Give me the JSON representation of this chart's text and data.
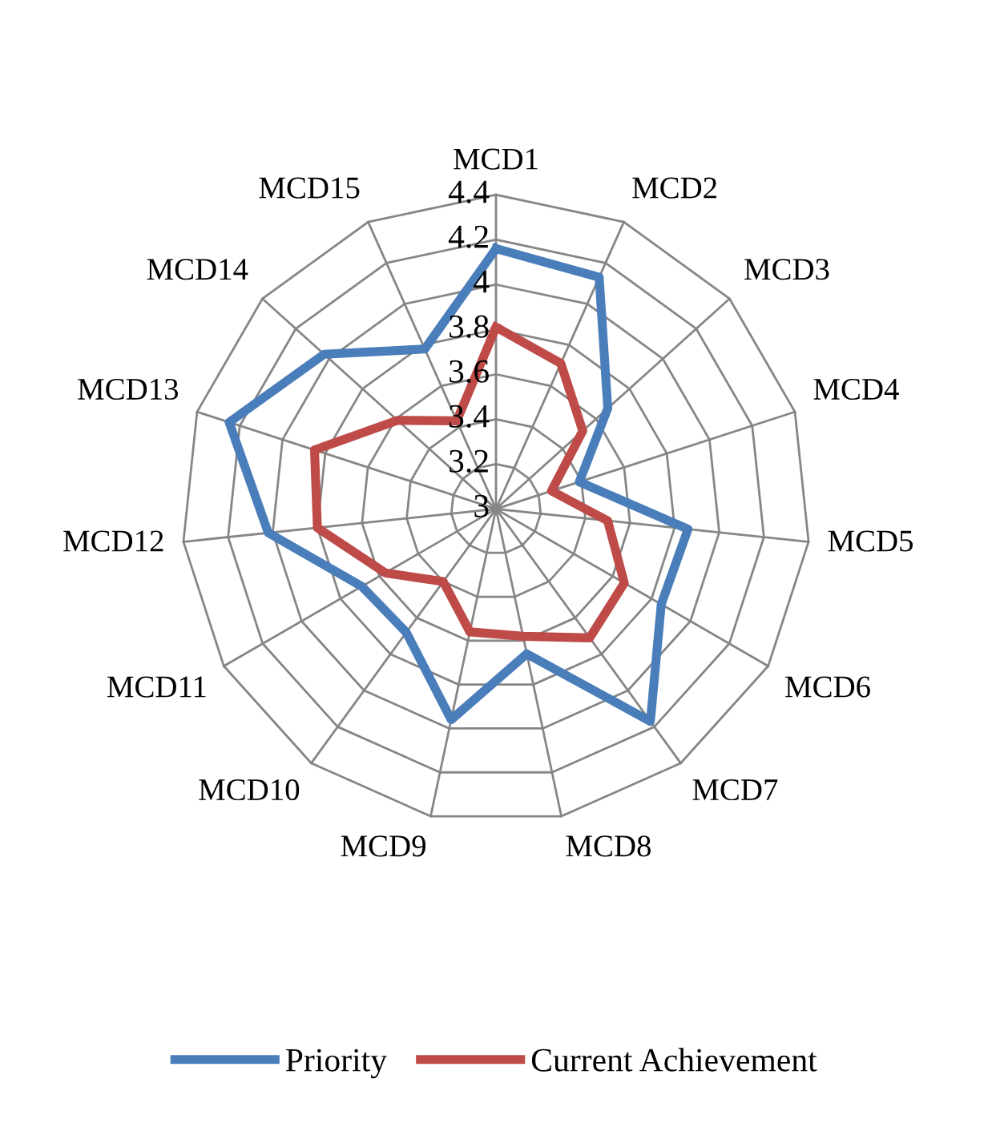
{
  "chart_data": {
    "type": "radar",
    "categories": [
      "MCD1",
      "MCD2",
      "MCD3",
      "MCD4",
      "MCD5",
      "MCD6",
      "MCD7",
      "MCD8",
      "MCD9",
      "MCD10",
      "MCD11",
      "MCD12",
      "MCD13",
      "MCD14",
      "MCD15"
    ],
    "series": [
      {
        "name": "Priority",
        "color": "#4a7ebb",
        "values": [
          4.16,
          4.13,
          3.67,
          3.39,
          3.86,
          3.85,
          4.17,
          3.66,
          3.96,
          3.68,
          3.69,
          4.02,
          4.25,
          4.03,
          3.78
        ]
      },
      {
        "name": "Current Achievement",
        "color": "#be4b48",
        "values": [
          3.81,
          3.71,
          3.52,
          3.26,
          3.5,
          3.66,
          3.71,
          3.58,
          3.56,
          3.4,
          3.57,
          3.8,
          3.85,
          3.59,
          3.43
        ]
      }
    ],
    "ylim": [
      3,
      4.4
    ],
    "yticks": [
      3,
      3.2,
      3.4,
      3.6,
      3.8,
      4,
      4.2,
      4.4
    ],
    "grid": true,
    "legend": "bottom",
    "marker": "none",
    "line_style": "solid"
  }
}
